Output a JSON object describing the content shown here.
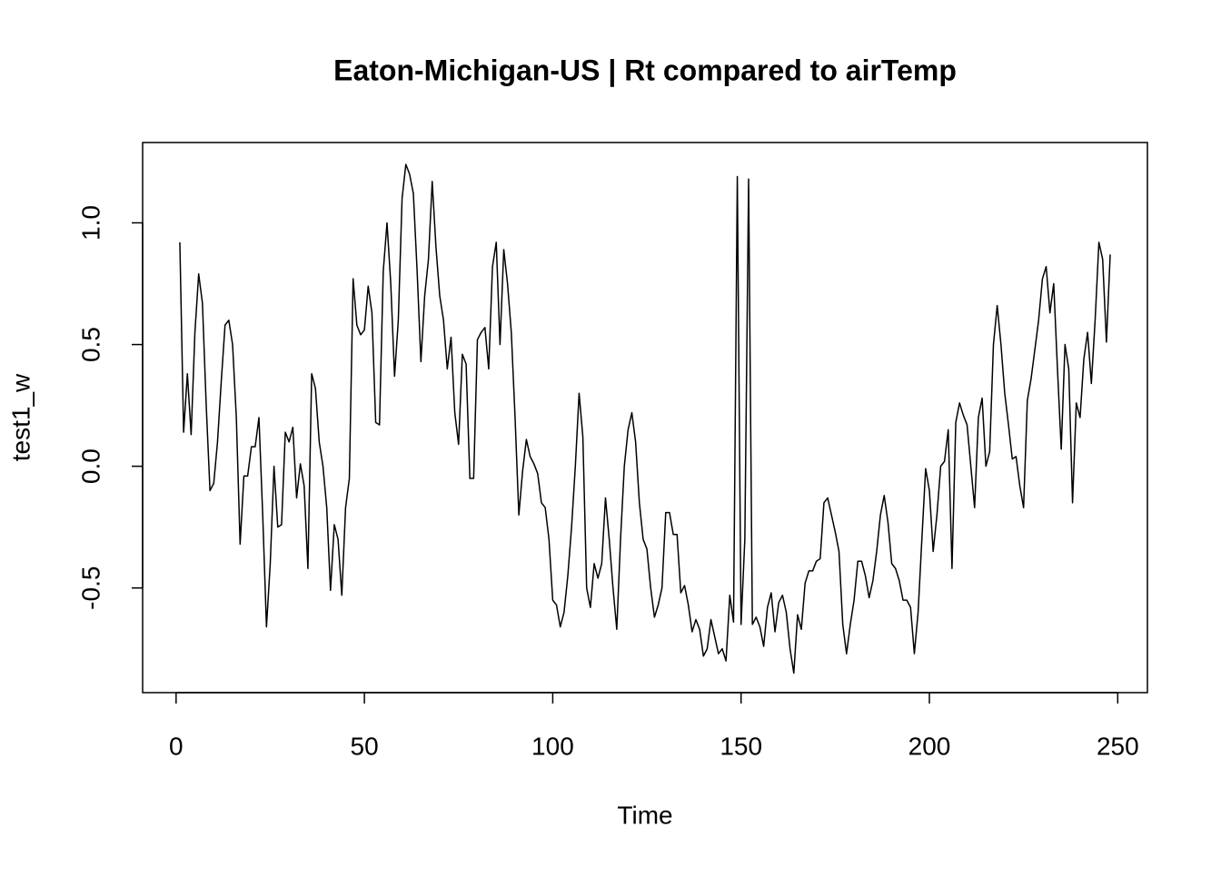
{
  "chart_data": {
    "type": "line",
    "title": "Eaton-Michigan-US | Rt compared to airTemp",
    "x_label": "Time",
    "y_label": "test1_w",
    "color": "#000000",
    "xlim": [
      -8.88,
      257.88
    ],
    "ylim": [
      -0.93,
      1.33
    ],
    "xticks": [
      0,
      50,
      100,
      150,
      200,
      250
    ],
    "yticks": [
      -0.5,
      {
        "value": 0,
        "label": "0.0"
      },
      0.5,
      {
        "value": 1,
        "label": "1.0"
      }
    ],
    "x": [
      1,
      2,
      3,
      4,
      5,
      6,
      7,
      8,
      9,
      10,
      11,
      12,
      13,
      14,
      15,
      16,
      17,
      18,
      19,
      20,
      21,
      22,
      23,
      24,
      25,
      26,
      27,
      28,
      29,
      30,
      31,
      32,
      33,
      34,
      35,
      36,
      37,
      38,
      39,
      40,
      41,
      42,
      43,
      44,
      45,
      46,
      47,
      48,
      49,
      50,
      51,
      52,
      53,
      54,
      55,
      56,
      57,
      58,
      59,
      60,
      61,
      62,
      63,
      64,
      65,
      66,
      67,
      68,
      69,
      70,
      71,
      72,
      73,
      74,
      75,
      76,
      77,
      78,
      79,
      80,
      81,
      82,
      83,
      84,
      85,
      86,
      87,
      88,
      89,
      90,
      91,
      92,
      93,
      94,
      95,
      96,
      97,
      98,
      99,
      100,
      101,
      102,
      103,
      104,
      105,
      106,
      107,
      108,
      109,
      110,
      111,
      112,
      113,
      114,
      115,
      116,
      117,
      118,
      119,
      120,
      121,
      122,
      123,
      124,
      125,
      126,
      127,
      128,
      129,
      130,
      131,
      132,
      133,
      134,
      135,
      136,
      137,
      138,
      139,
      140,
      141,
      142,
      143,
      144,
      145,
      146,
      147,
      148,
      149,
      150,
      151,
      152,
      153,
      154,
      155,
      156,
      157,
      158,
      159,
      160,
      161,
      162,
      163,
      164,
      165,
      166,
      167,
      168,
      169,
      170,
      171,
      172,
      173,
      174,
      175,
      176,
      177,
      178,
      179,
      180,
      181,
      182,
      183,
      184,
      185,
      186,
      187,
      188,
      189,
      190,
      191,
      192,
      193,
      194,
      195,
      196,
      197,
      198,
      199,
      200,
      201,
      202,
      203,
      204,
      205,
      206,
      207,
      208,
      209,
      210,
      211,
      212,
      213,
      214,
      215,
      216,
      217,
      218,
      219,
      220,
      221,
      222,
      223,
      224,
      225,
      226,
      227,
      228,
      229,
      230,
      231,
      232,
      233,
      234,
      235,
      236,
      237,
      238,
      239,
      240,
      241,
      242,
      243,
      244,
      245,
      246,
      247,
      248
    ],
    "values": [
      0.92,
      0.14,
      0.38,
      0.13,
      0.55,
      0.79,
      0.67,
      0.25,
      -0.1,
      -0.07,
      0.1,
      0.35,
      0.58,
      0.6,
      0.5,
      0.2,
      -0.32,
      -0.04,
      -0.04,
      0.08,
      0.08,
      0.2,
      -0.2,
      -0.66,
      -0.4,
      0.0,
      -0.25,
      -0.24,
      0.14,
      0.1,
      0.16,
      -0.13,
      0.01,
      -0.08,
      -0.42,
      0.38,
      0.32,
      0.1,
      0.0,
      -0.17,
      -0.51,
      -0.24,
      -0.3,
      -0.53,
      -0.17,
      -0.05,
      0.77,
      0.58,
      0.54,
      0.56,
      0.74,
      0.63,
      0.18,
      0.17,
      0.8,
      1.0,
      0.75,
      0.37,
      0.6,
      1.1,
      1.24,
      1.2,
      1.12,
      0.8,
      0.43,
      0.7,
      0.85,
      1.17,
      0.9,
      0.7,
      0.6,
      0.4,
      0.53,
      0.22,
      0.09,
      0.46,
      0.42,
      -0.05,
      -0.05,
      0.52,
      0.55,
      0.57,
      0.4,
      0.82,
      0.92,
      0.5,
      0.89,
      0.75,
      0.55,
      0.2,
      -0.2,
      -0.02,
      0.11,
      0.04,
      0.01,
      -0.03,
      -0.15,
      -0.17,
      -0.3,
      -0.55,
      -0.57,
      -0.66,
      -0.6,
      -0.45,
      -0.25,
      0.0,
      0.3,
      0.12,
      -0.5,
      -0.58,
      -0.4,
      -0.46,
      -0.4,
      -0.13,
      -0.3,
      -0.5,
      -0.67,
      -0.3,
      0.0,
      0.15,
      0.22,
      0.1,
      -0.15,
      -0.3,
      -0.34,
      -0.5,
      -0.62,
      -0.57,
      -0.5,
      -0.19,
      -0.19,
      -0.28,
      -0.28,
      -0.52,
      -0.49,
      -0.57,
      -0.68,
      -0.63,
      -0.67,
      -0.78,
      -0.75,
      -0.63,
      -0.7,
      -0.77,
      -0.75,
      -0.8,
      -0.53,
      -0.64,
      1.19,
      -0.65,
      -0.3,
      1.18,
      -0.65,
      -0.62,
      -0.66,
      -0.74,
      -0.58,
      -0.52,
      -0.68,
      -0.56,
      -0.53,
      -0.6,
      -0.75,
      -0.85,
      -0.61,
      -0.67,
      -0.48,
      -0.43,
      -0.43,
      -0.39,
      -0.38,
      -0.15,
      -0.13,
      -0.2,
      -0.27,
      -0.35,
      -0.65,
      -0.77,
      -0.65,
      -0.55,
      -0.39,
      -0.39,
      -0.45,
      -0.54,
      -0.47,
      -0.35,
      -0.2,
      -0.12,
      -0.23,
      -0.4,
      -0.42,
      -0.47,
      -0.55,
      -0.55,
      -0.58,
      -0.77,
      -0.6,
      -0.3,
      -0.01,
      -0.1,
      -0.35,
      -0.2,
      0.0,
      0.02,
      0.15,
      -0.42,
      0.18,
      0.26,
      0.21,
      0.17,
      0.0,
      -0.17,
      0.2,
      0.28,
      0.0,
      0.06,
      0.5,
      0.66,
      0.5,
      0.3,
      0.17,
      0.03,
      0.04,
      -0.08,
      -0.17,
      0.27,
      0.36,
      0.48,
      0.6,
      0.77,
      0.82,
      0.63,
      0.75,
      0.4,
      0.07,
      0.5,
      0.4,
      -0.15,
      0.26,
      0.2,
      0.44,
      0.55,
      0.34,
      0.6,
      0.92,
      0.85,
      0.51,
      0.87
    ]
  }
}
